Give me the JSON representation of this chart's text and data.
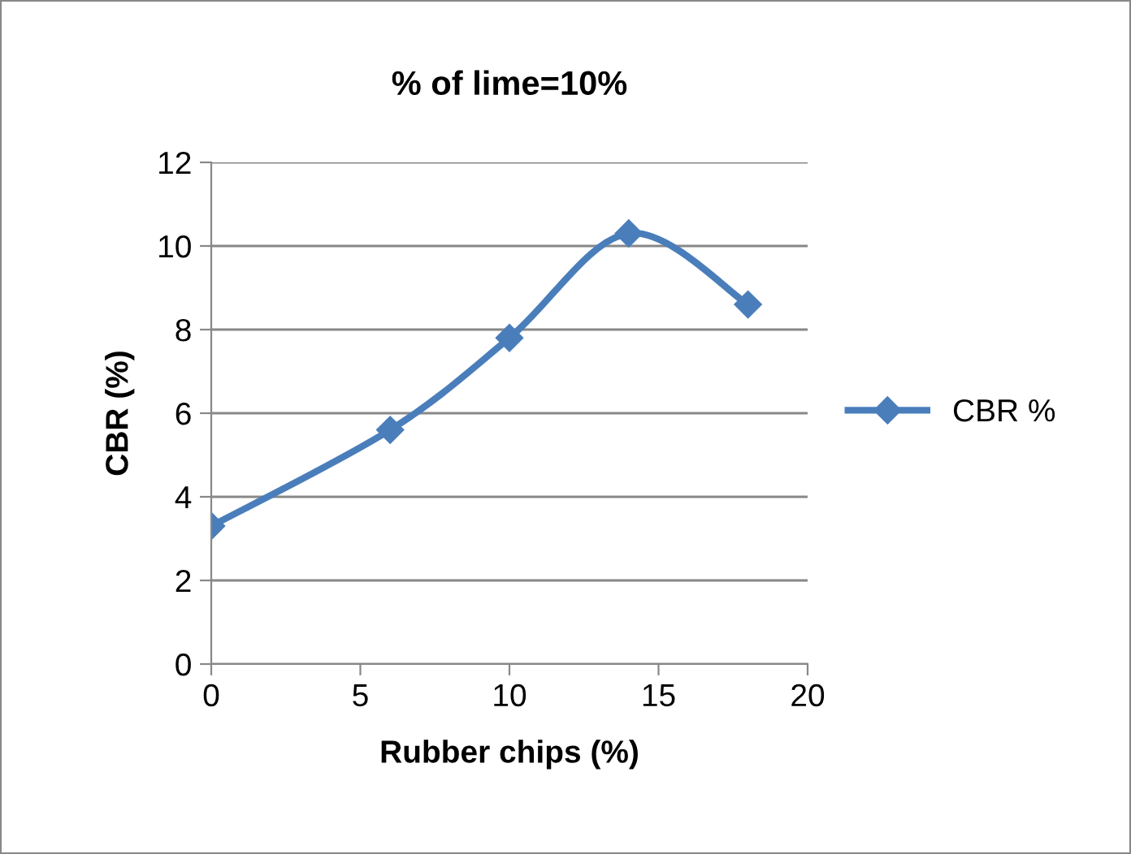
{
  "chart_data": {
    "type": "line",
    "title": "% of lime=10%",
    "xlabel": "Rubber chips (%)",
    "ylabel": "CBR (%)",
    "x": [
      0,
      6,
      10,
      14,
      18
    ],
    "series": [
      {
        "name": "CBR %",
        "color": "#4a7ebb",
        "values": [
          3.3,
          5.6,
          7.8,
          10.3,
          8.6
        ]
      }
    ],
    "xlim": [
      0,
      20
    ],
    "xticks": [
      0,
      5,
      10,
      15,
      20
    ],
    "ylim": [
      0,
      12
    ],
    "yticks": [
      0,
      2,
      4,
      6,
      8,
      10,
      12
    ],
    "grid": "y",
    "legend": "right",
    "marker": "diamond",
    "line_style": "solid"
  }
}
